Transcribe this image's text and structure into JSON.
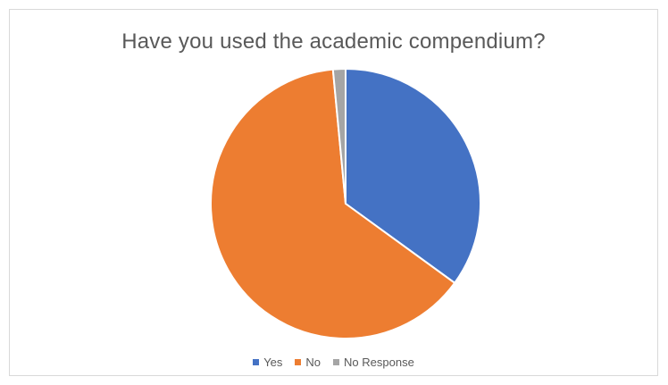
{
  "chart_data": {
    "type": "pie",
    "title": "Have you used the academic compendium?",
    "categories": [
      "Yes",
      "No",
      "No Response"
    ],
    "values": [
      35,
      63.5,
      1.5
    ],
    "colors": [
      "#4472C4",
      "#ED7D31",
      "#A5A5A5"
    ],
    "legend_position": "bottom",
    "start_angle_deg": 0,
    "direction": "clockwise"
  }
}
